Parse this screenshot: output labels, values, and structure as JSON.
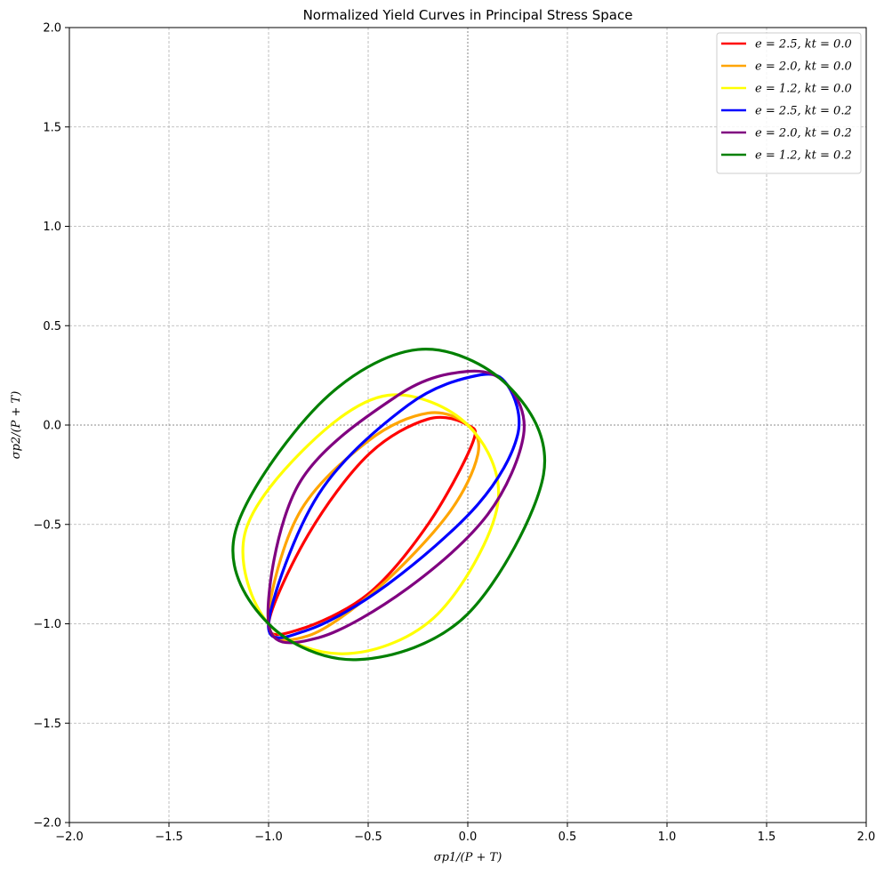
{
  "chart_data": {
    "type": "line",
    "title": "Normalized Yield Curves in Principal Stress Space",
    "xlabel": "σp1/(P + T)",
    "ylabel": "σp2/(P + T)",
    "xlim": [
      -2.0,
      2.0
    ],
    "ylim": [
      -2.0,
      2.0
    ],
    "xticks": [
      -2.0,
      -1.5,
      -1.0,
      -0.5,
      0.0,
      0.5,
      1.0,
      1.5,
      2.0
    ],
    "yticks": [
      -2.0,
      -1.5,
      -1.0,
      -0.5,
      0.0,
      0.5,
      1.0,
      1.5,
      2.0
    ],
    "xtick_labels": [
      "−2.0",
      "−1.5",
      "−1.0",
      "−0.5",
      "0.0",
      "0.5",
      "1.0",
      "1.5",
      "2.0"
    ],
    "ytick_labels": [
      "−2.0",
      "−1.5",
      "−1.0",
      "−0.5",
      "0.0",
      "0.5",
      "1.0",
      "1.5",
      "2.0"
    ],
    "grid": true,
    "legend_position": "top-right",
    "series": [
      {
        "name": "e = 2.5,  kt = 0.0",
        "color": "#ff0000",
        "e": 2.5,
        "kt": 0.0,
        "points": [
          [
            0.0,
            0.0
          ],
          [
            -0.2,
            0.03
          ],
          [
            -0.5,
            -0.15
          ],
          [
            -0.8,
            -0.55
          ],
          [
            -1.0,
            -1.0
          ],
          [
            -0.85,
            -1.03
          ],
          [
            -0.5,
            -0.85
          ],
          [
            -0.2,
            -0.5
          ],
          [
            0.02,
            -0.1
          ],
          [
            0.0,
            0.0
          ]
        ]
      },
      {
        "name": "e = 2.0,  kt = 0.0",
        "color": "#ffa500",
        "e": 2.0,
        "kt": 0.0,
        "points": [
          [
            0.0,
            0.0
          ],
          [
            -0.2,
            0.06
          ],
          [
            -0.5,
            -0.08
          ],
          [
            -0.85,
            -0.45
          ],
          [
            -1.0,
            -1.0
          ],
          [
            -0.8,
            -1.06
          ],
          [
            -0.45,
            -0.82
          ],
          [
            -0.1,
            -0.45
          ],
          [
            0.05,
            -0.15
          ],
          [
            0.0,
            0.0
          ]
        ]
      },
      {
        "name": "e = 1.2,  kt = 0.0",
        "color": "#ffff00",
        "e": 1.2,
        "kt": 0.0,
        "points": [
          [
            0.0,
            0.0
          ],
          [
            -0.4,
            0.15
          ],
          [
            -0.8,
            -0.1
          ],
          [
            -1.12,
            -0.55
          ],
          [
            -1.0,
            -1.0
          ],
          [
            -0.6,
            -1.15
          ],
          [
            -0.15,
            -0.95
          ],
          [
            0.15,
            -0.4
          ],
          [
            0.0,
            0.0
          ]
        ]
      },
      {
        "name": "e = 2.5,  kt = 0.2",
        "color": "#0000ff",
        "e": 2.5,
        "kt": 0.2,
        "points": [
          [
            0.2,
            0.2
          ],
          [
            0.05,
            0.25
          ],
          [
            -0.3,
            0.1
          ],
          [
            -0.75,
            -0.35
          ],
          [
            -1.0,
            -1.0
          ],
          [
            -0.8,
            -1.03
          ],
          [
            -0.4,
            -0.8
          ],
          [
            0.05,
            -0.4
          ],
          [
            0.25,
            -0.05
          ],
          [
            0.2,
            0.2
          ]
        ]
      },
      {
        "name": "e = 2.0,  kt = 0.2",
        "color": "#800080",
        "e": 2.0,
        "kt": 0.2,
        "points": [
          [
            0.2,
            0.2
          ],
          [
            0.0,
            0.27
          ],
          [
            -0.35,
            0.15
          ],
          [
            -0.85,
            -0.3
          ],
          [
            -1.0,
            -1.0
          ],
          [
            -0.75,
            -1.07
          ],
          [
            -0.3,
            -0.82
          ],
          [
            0.1,
            -0.45
          ],
          [
            0.28,
            -0.05
          ],
          [
            0.2,
            0.2
          ]
        ]
      },
      {
        "name": "e = 1.2,  kt = 0.2",
        "color": "#008000",
        "e": 1.2,
        "kt": 0.2,
        "points": [
          [
            0.2,
            0.2
          ],
          [
            -0.25,
            0.38
          ],
          [
            -0.75,
            0.1
          ],
          [
            -1.17,
            -0.55
          ],
          [
            -1.0,
            -1.0
          ],
          [
            -0.55,
            -1.18
          ],
          [
            0.0,
            -0.95
          ],
          [
            0.38,
            -0.25
          ],
          [
            0.2,
            0.2
          ]
        ]
      }
    ]
  }
}
